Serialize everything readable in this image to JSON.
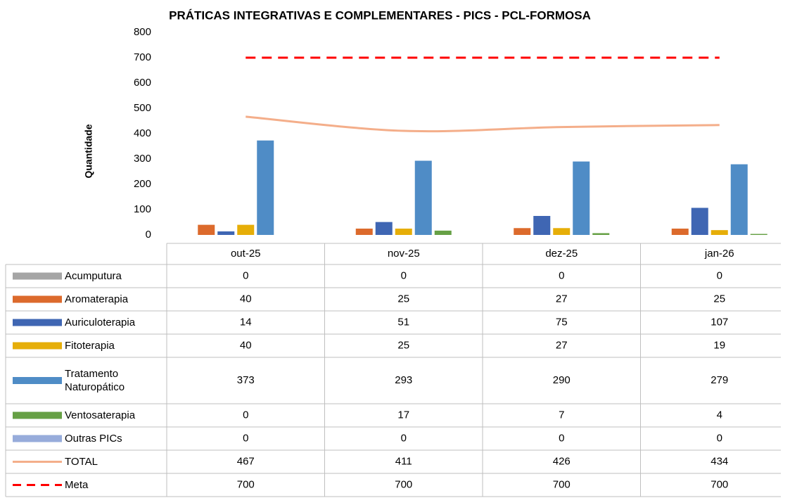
{
  "chart_data": {
    "type": "bar",
    "title": "PRÁTICAS INTEGRATIVAS E COMPLEMENTARES - PICS - PCL-FORMOSA",
    "y_label": "Quantidade",
    "categories": [
      "out-25",
      "nov-25",
      "dez-25",
      "jan-26"
    ],
    "series": [
      {
        "name": "Acumputura",
        "color": "#a5a5a5",
        "values": [
          0,
          0,
          0,
          0
        ]
      },
      {
        "name": "Aromaterapia",
        "color": "#dc6a2c",
        "values": [
          40,
          25,
          27,
          25
        ]
      },
      {
        "name": "Auriculoterapia",
        "color": "#3f66b3",
        "values": [
          14,
          51,
          75,
          107
        ]
      },
      {
        "name": "Fitoterapia",
        "color": "#e6ae08",
        "values": [
          40,
          25,
          27,
          19
        ]
      },
      {
        "name": "Tratamento Naturopático",
        "color": "#4f8cc6",
        "values": [
          373,
          293,
          290,
          279
        ]
      },
      {
        "name": "Ventosaterapia",
        "color": "#66a045",
        "values": [
          0,
          17,
          7,
          4
        ]
      },
      {
        "name": "Outras PICs",
        "color": "#97acdb",
        "values": [
          0,
          0,
          0,
          0
        ]
      },
      {
        "name": "TOTAL",
        "color": "#f4ae8a",
        "type": "line",
        "smooth": true,
        "values": [
          467,
          411,
          426,
          434
        ]
      },
      {
        "name": "Meta",
        "color": "#ff0000",
        "type": "line",
        "dashed": true,
        "values": [
          700,
          700,
          700,
          700
        ]
      }
    ],
    "ylim": [
      0,
      800
    ],
    "yticks": [
      0,
      100,
      200,
      300,
      400,
      500,
      600,
      700,
      800
    ],
    "grid": false
  }
}
